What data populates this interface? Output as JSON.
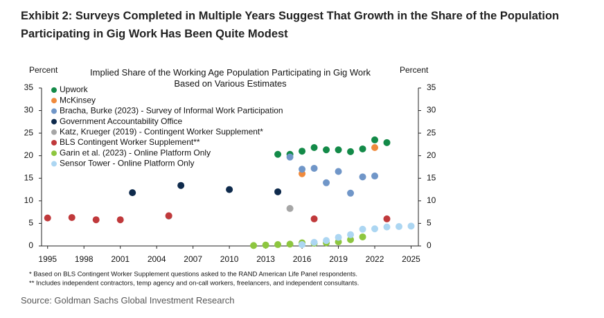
{
  "header": {
    "title": "Exhibit 2: Surveys Completed in Multiple Years Suggest That Growth in the Share of the Population Participating in Gig Work Has Been Quite Modest"
  },
  "chart_data": {
    "type": "scatter",
    "title": "Implied Share of the Working Age Population Participating in Gig Work Based on Various Estimates",
    "y_label": "Percent",
    "y2_label": "Percent",
    "xlim": [
      1994.5,
      2025.6
    ],
    "xticks": [
      1995,
      1998,
      2001,
      2004,
      2007,
      2010,
      2013,
      2016,
      2019,
      2022,
      2025
    ],
    "ylim": [
      0,
      35
    ],
    "yticks": [
      0,
      5,
      10,
      15,
      20,
      25,
      30,
      35
    ],
    "y2lim": [
      0,
      35
    ],
    "y2ticks": [
      0,
      5,
      10,
      15,
      20,
      25,
      30,
      35
    ],
    "legend": "upper left",
    "series": [
      {
        "name": "Upwork",
        "color": "#138a48",
        "x": [
          2014,
          2015,
          2016,
          2017,
          2018,
          2019,
          2020,
          2021,
          2022,
          2023
        ],
        "values": [
          20.3,
          20.3,
          21.0,
          21.8,
          21.3,
          21.3,
          20.9,
          21.5,
          23.5,
          22.9
        ]
      },
      {
        "name": "McKinsey",
        "color": "#f08a3c",
        "x": [
          2016,
          2022
        ],
        "values": [
          16.0,
          21.8
        ]
      },
      {
        "name": "Bracha, Burke (2023) - Survey of Informal Work Participation",
        "color": "#7096c8",
        "x": [
          2015,
          2016,
          2017,
          2018,
          2019,
          2020,
          2021,
          2022
        ],
        "values": [
          19.7,
          17.0,
          17.2,
          14.0,
          16.5,
          11.7,
          15.3,
          15.5
        ]
      },
      {
        "name": "Government Accountability Office",
        "color": "#0e2a4c",
        "x": [
          2002,
          2006,
          2010,
          2014
        ],
        "values": [
          11.8,
          13.4,
          12.5,
          12.0
        ]
      },
      {
        "name": "Katz, Krueger (2019) - Contingent Worker Supplement*",
        "color": "#a6a6a6",
        "x": [
          2005,
          2015
        ],
        "values": [
          6.6,
          8.3
        ]
      },
      {
        "name": "BLS Contingent Worker Supplement**",
        "color": "#c0393b",
        "x": [
          1995,
          1997,
          1999,
          2001,
          2005,
          2017,
          2023
        ],
        "values": [
          6.2,
          6.3,
          5.8,
          5.8,
          6.7,
          6.0,
          6.0
        ]
      },
      {
        "name": "Garin et al. (2023) - Online Platform Only",
        "color": "#8dc63f",
        "x": [
          2012,
          2013,
          2014,
          2015,
          2016,
          2017,
          2018,
          2019,
          2020,
          2021
        ],
        "values": [
          0.1,
          0.2,
          0.3,
          0.4,
          0.7,
          0.6,
          0.7,
          0.9,
          1.4,
          2.0
        ]
      },
      {
        "name": "Sensor Tower - Online Platform Only",
        "color": "#acd6f2",
        "x": [
          2016,
          2017,
          2018,
          2019,
          2020,
          2021,
          2022,
          2023,
          2024,
          2025
        ],
        "values": [
          0.3,
          0.8,
          1.2,
          1.9,
          2.5,
          3.7,
          3.8,
          4.2,
          4.3,
          4.4
        ]
      }
    ],
    "footnotes": [
      "* Based on BLS Contingent Worker Supplement questions asked to the RAND American Life Panel respondents.",
      "** Includes independent contractors, temp agency and on-call workers, freelancers, and independent consultants."
    ]
  },
  "source": "Source: Goldman Sachs Global Investment Research"
}
